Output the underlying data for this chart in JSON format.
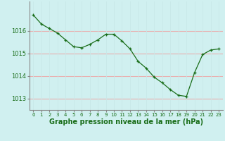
{
  "x": [
    0,
    1,
    2,
    3,
    4,
    5,
    6,
    7,
    8,
    9,
    10,
    11,
    12,
    13,
    14,
    15,
    16,
    17,
    18,
    19,
    20,
    21,
    22,
    23
  ],
  "y": [
    1016.7,
    1016.3,
    1016.1,
    1015.9,
    1015.6,
    1015.3,
    1015.25,
    1015.4,
    1015.6,
    1015.85,
    1015.85,
    1015.55,
    1015.2,
    1014.65,
    1014.35,
    1013.95,
    1013.7,
    1013.4,
    1013.15,
    1013.1,
    1014.15,
    1014.95,
    1015.15,
    1015.2
  ],
  "line_color": "#1a6e1a",
  "marker_color": "#1a6e1a",
  "bg_color": "#d0f0f0",
  "grid_h_color": "#e8b0b0",
  "grid_v_color": "#c8e8e8",
  "ylabel_ticks": [
    1013,
    1014,
    1015,
    1016
  ],
  "xlabel": "Graphe pression niveau de la mer (hPa)",
  "xlabel_color": "#1a6e1a",
  "axis_color": "#888888",
  "ylim": [
    1012.5,
    1017.3
  ],
  "xlim": [
    -0.5,
    23.5
  ],
  "tick_fontsize": 6.0,
  "label_fontsize": 7.0
}
